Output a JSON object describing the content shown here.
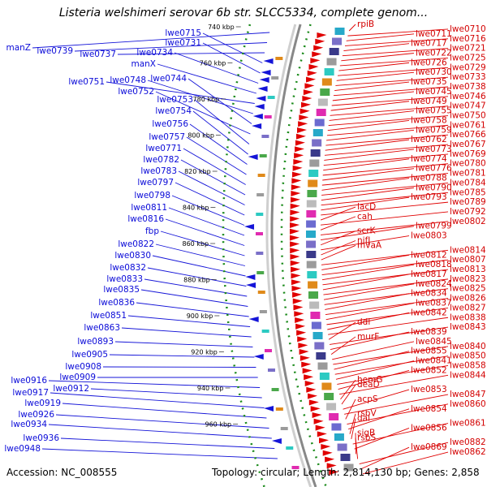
{
  "title": "Listeria welshimeri serovar 6b str. SLCC5334, complete genom...",
  "footer": {
    "accession": "Accession: NC_008555",
    "topology": "Topology: circular; Length: 2,814,130 bp; Genes: 2,858"
  },
  "colors": {
    "left_genes": "#1515d8",
    "right_genes": "#e00000",
    "backbone": "#888888",
    "dotted_track": "#1a8a1a"
  },
  "tick_labels": [
    "740 kbp",
    "760 kbp",
    "780 kbp",
    "800 kbp",
    "820 kbp",
    "840 kbp",
    "860 kbp",
    "880 kbp",
    "900 kbp",
    "920 kbp",
    "940 kbp",
    "960 kbp"
  ],
  "left_labels": [
    "manZ",
    "lwe0739",
    "lwe0737",
    "lwe0715",
    "lwe0731",
    "lwe0734",
    "manX",
    "lwe0751",
    "lwe0748",
    "lwe0744",
    "lwe0752",
    "lwe0753",
    "lwe0754",
    "lwe0756",
    "lwe0757",
    "lwe0771",
    "lwe0782",
    "lwe0783",
    "lwe0797",
    "lwe0798",
    "lwe0811",
    "lwe0816",
    "fbp",
    "lwe0822",
    "lwe0830",
    "lwe0832",
    "lwe0833",
    "lwe0835",
    "lwe0836",
    "lwe0851",
    "lwe0863",
    "lwe0893",
    "lwe0905",
    "lwe0908",
    "lwe0909",
    "lwe0916",
    "lwe0912",
    "lwe0917",
    "lwe0919",
    "lwe0926",
    "lwe0934",
    "lwe0936",
    "lwe0948"
  ],
  "right_labels": [
    "rpiB",
    "lwe0710",
    "lwe0711",
    "lwe0716",
    "lwe0717",
    "lwe0721",
    "lwe0722",
    "lwe0725",
    "lwe0726",
    "lwe0729",
    "lwe0730",
    "lwe0733",
    "lwe0735",
    "lwe0738",
    "lwe0745",
    "lwe0746",
    "lwe0749",
    "lwe0747",
    "lwe0755",
    "lwe0750",
    "lwe0758",
    "lwe0761",
    "lwe0759",
    "lwe0766",
    "lwe0762",
    "lwe0767",
    "lwe0773",
    "lwe0769",
    "lwe0774",
    "lwe0780",
    "lwe0776",
    "lwe0781",
    "lwe0788",
    "lwe0784",
    "lwe0790",
    "lwe0785",
    "lwe0793",
    "lwe0789",
    "lacD",
    "lwe0792",
    "cah",
    "lwe0802",
    "lwe0799",
    "scrK",
    "lwe0803",
    "nifJ",
    "mvaA",
    "lwe0814",
    "lwe0812",
    "lwe0807",
    "lwe0818",
    "lwe0813",
    "lwe0817",
    "lwe0823",
    "lwe0824",
    "lwe0825",
    "lwe0834",
    "lwe0826",
    "lwe0837",
    "lwe0827",
    "lwe0842",
    "lwe0838",
    "ddl",
    "lwe0843",
    "lwe0839",
    "murF",
    "lwe0845",
    "lwe0840",
    "lwe0855",
    "lwe0850",
    "lwe0841",
    "lwe0858",
    "lwe0852",
    "lwe0844",
    "hemG",
    "deaD",
    "lwe0853",
    "lwe0847",
    "acpS",
    "lwe0860",
    "lwe0854",
    "rsbV",
    "dal",
    "lwe0861",
    "lwe0856",
    "sigB",
    "rsbS",
    "lwe0882",
    "lwe0869",
    "lwe0862"
  ]
}
